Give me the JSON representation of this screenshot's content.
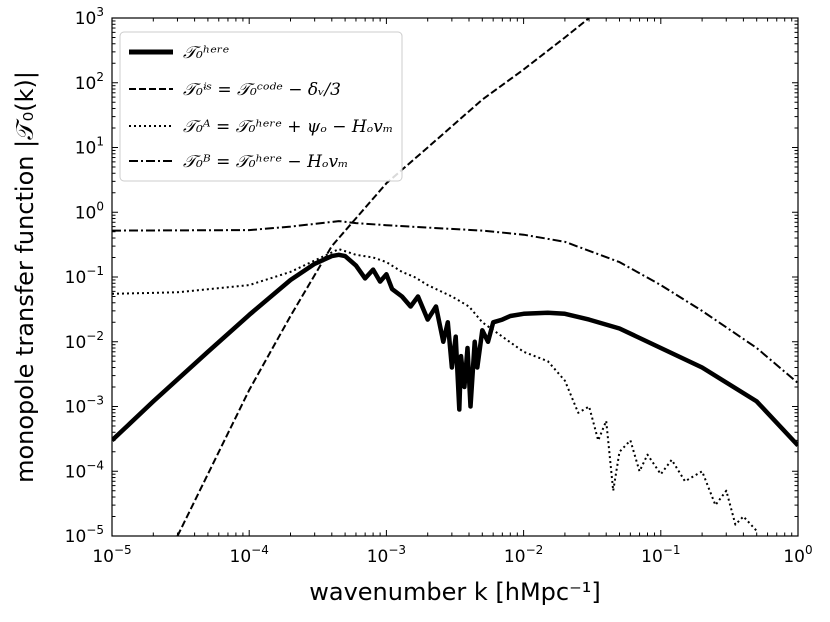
{
  "chart_data": {
    "type": "line",
    "scale": "log-log",
    "xlabel": "wavenumber k [hMpc⁻¹]",
    "ylabel": "monopole transfer function |𝒯₀(k)|",
    "xlim": [
      1e-05,
      1
    ],
    "ylim": [
      1e-05,
      1000
    ],
    "xticks": [
      {
        "value": 1e-05,
        "base": "10",
        "exp": "−5"
      },
      {
        "value": 0.0001,
        "base": "10",
        "exp": "−4"
      },
      {
        "value": 0.001,
        "base": "10",
        "exp": "−3"
      },
      {
        "value": 0.01,
        "base": "10",
        "exp": "−2"
      },
      {
        "value": 0.1,
        "base": "10",
        "exp": "−1"
      },
      {
        "value": 1,
        "base": "10",
        "exp": "0"
      }
    ],
    "yticks": [
      {
        "value": 1e-05,
        "base": "10",
        "exp": "−5"
      },
      {
        "value": 0.0001,
        "base": "10",
        "exp": "−4"
      },
      {
        "value": 0.001,
        "base": "10",
        "exp": "−3"
      },
      {
        "value": 0.01,
        "base": "10",
        "exp": "−2"
      },
      {
        "value": 0.1,
        "base": "10",
        "exp": "−1"
      },
      {
        "value": 1,
        "base": "10",
        "exp": "0"
      },
      {
        "value": 10,
        "base": "10",
        "exp": "1"
      },
      {
        "value": 100,
        "base": "10",
        "exp": "2"
      },
      {
        "value": 1000,
        "base": "10",
        "exp": "3"
      }
    ],
    "legend": {
      "position": "top-left",
      "entries": [
        {
          "style": "solid",
          "label": "𝒯₀ʰᵉʳᵉ"
        },
        {
          "style": "dashed",
          "label": "𝒯₀ᶤˢ = 𝒯₀ᶜᵒᵈᵉ − δᵥ/3"
        },
        {
          "style": "dotted",
          "label": "𝒯₀ᴬ = 𝒯₀ʰᵉʳᵉ + ψₒ − Hₒvₘ"
        },
        {
          "style": "dashdot",
          "label": "𝒯₀ᴮ = 𝒯₀ʰᵉʳᵉ − Hₒvₘ"
        }
      ]
    },
    "series": [
      {
        "name": "T0 here",
        "style": "solid",
        "x": [
          1e-05,
          2e-05,
          5e-05,
          0.0001,
          0.0002,
          0.0003,
          0.0004,
          0.00045,
          0.0005,
          0.0006,
          0.0007,
          0.0008,
          0.0009,
          0.001,
          0.0011,
          0.0013,
          0.0015,
          0.0017,
          0.002,
          0.0023,
          0.0026,
          0.0028,
          0.003,
          0.0032,
          0.0034,
          0.0035,
          0.0037,
          0.0039,
          0.0041,
          0.0044,
          0.0046,
          0.005,
          0.0055,
          0.006,
          0.007,
          0.008,
          0.01,
          0.015,
          0.02,
          0.03,
          0.05,
          0.1,
          0.2,
          0.5,
          1
        ],
        "y": [
          0.0003,
          0.0012,
          0.007,
          0.026,
          0.09,
          0.16,
          0.21,
          0.22,
          0.21,
          0.15,
          0.095,
          0.13,
          0.085,
          0.11,
          0.065,
          0.05,
          0.035,
          0.05,
          0.022,
          0.035,
          0.01,
          0.02,
          0.004,
          0.012,
          0.0009,
          0.006,
          0.002,
          0.008,
          0.001,
          0.01,
          0.004,
          0.015,
          0.01,
          0.02,
          0.022,
          0.025,
          0.027,
          0.028,
          0.027,
          0.022,
          0.016,
          0.008,
          0.004,
          0.0012,
          0.00025
        ]
      },
      {
        "name": "T0 ZS",
        "style": "dashed",
        "x": [
          3e-05,
          0.0001,
          0.0002,
          0.0004,
          0.001,
          0.002,
          0.005,
          0.01,
          0.02,
          0.03
        ],
        "y": [
          1e-05,
          0.0018,
          0.025,
          0.3,
          2.8,
          10,
          55,
          160,
          500,
          1000
        ]
      },
      {
        "name": "T0 A",
        "style": "dotted",
        "x": [
          1e-05,
          3e-05,
          0.0001,
          0.0002,
          0.0003,
          0.00045,
          0.0006,
          0.0008,
          0.001,
          0.0013,
          0.0016,
          0.002,
          0.0025,
          0.003,
          0.004,
          0.005,
          0.007,
          0.01,
          0.015,
          0.02,
          0.025,
          0.03,
          0.035,
          0.04,
          0.045,
          0.05,
          0.06,
          0.07,
          0.08,
          0.1,
          0.12,
          0.15,
          0.2,
          0.25,
          0.3,
          0.35,
          0.4,
          0.5
        ],
        "y": [
          0.055,
          0.058,
          0.075,
          0.12,
          0.18,
          0.27,
          0.22,
          0.2,
          0.17,
          0.12,
          0.1,
          0.075,
          0.06,
          0.05,
          0.035,
          0.02,
          0.012,
          0.007,
          0.005,
          0.0025,
          0.0008,
          0.001,
          0.0003,
          0.0006,
          5e-05,
          0.0002,
          0.0003,
          0.0001,
          0.00018,
          9e-05,
          0.00015,
          7e-05,
          0.0001,
          3e-05,
          5e-05,
          1.5e-05,
          2e-05,
          1.2e-05
        ]
      },
      {
        "name": "T0 B",
        "style": "dashdot",
        "x": [
          1e-05,
          0.0001,
          0.0002,
          0.0003,
          0.00045,
          0.0006,
          0.001,
          0.002,
          0.005,
          0.01,
          0.02,
          0.05,
          0.1,
          0.2,
          0.5,
          1
        ],
        "y": [
          0.52,
          0.53,
          0.6,
          0.66,
          0.73,
          0.68,
          0.63,
          0.58,
          0.52,
          0.45,
          0.35,
          0.17,
          0.075,
          0.03,
          0.008,
          0.0023
        ]
      }
    ]
  }
}
